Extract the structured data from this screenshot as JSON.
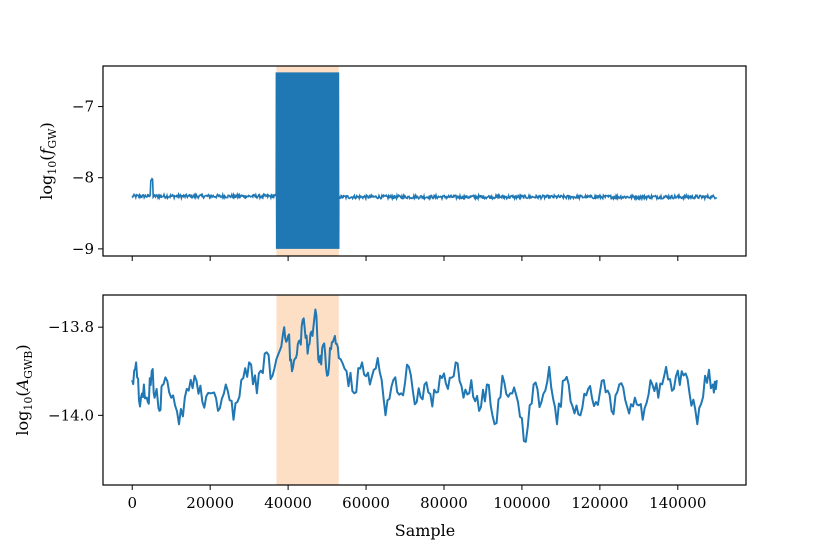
{
  "chart_data": [
    {
      "type": "line",
      "panel": "top",
      "ylabel": "log10(f_GW)",
      "ylabel_parts": {
        "main": "log",
        "sub": "10",
        "open": "(",
        "var": "f",
        "varsub": "GW",
        "close": ")"
      },
      "xlim": [
        -7500,
        157500
      ],
      "ylim": [
        -9.1,
        -6.43
      ],
      "yticks": [
        -9,
        -8,
        -7
      ],
      "ytick_labels": [
        "−9",
        "−8",
        "−7"
      ],
      "xticks": [
        0,
        20000,
        40000,
        60000,
        80000,
        100000,
        120000,
        140000
      ],
      "show_xtick_labels": false,
      "highlight_span": [
        37000,
        53000
      ],
      "line_color": "#1f77b4",
      "highlight_color": "#fddcbf",
      "series": [
        {
          "segments": [
            {
              "x_start": 0,
              "x_end": 37000,
              "mean": -8.26,
              "noise": 0.05
            },
            {
              "x_start": 37000,
              "x_end": 53000,
              "min": -9.0,
              "max": -6.52,
              "oscillating": true
            },
            {
              "x_start": 53000,
              "x_end": 150000,
              "mean": -8.27,
              "noise": 0.05
            }
          ],
          "spike": {
            "x": 5000,
            "y": -8.03
          }
        }
      ]
    },
    {
      "type": "line",
      "panel": "bottom",
      "ylabel": "log10(A_GWB)",
      "ylabel_parts": {
        "main": "log",
        "sub": "10",
        "open": "(",
        "var": "A",
        "varsub": "GWB",
        "close": ")"
      },
      "xlabel": "Sample",
      "xlim": [
        -7500,
        157500
      ],
      "ylim": [
        -14.158,
        -13.727
      ],
      "yticks": [
        -14.0,
        -13.8
      ],
      "ytick_labels": [
        "−14.0",
        "−13.8"
      ],
      "xticks": [
        0,
        20000,
        40000,
        60000,
        80000,
        100000,
        120000,
        140000
      ],
      "xtick_labels": [
        "0",
        "20000",
        "40000",
        "60000",
        "80000",
        "100000",
        "120000",
        "140000"
      ],
      "highlight_span": [
        37000,
        53000
      ],
      "line_color": "#1f77b4",
      "highlight_color": "#fddcbf",
      "series": [
        {
          "x": [
            0,
            1000,
            2000,
            3000,
            4000,
            5000,
            6000,
            7000,
            8000,
            10000,
            12000,
            14000,
            16000,
            18000,
            20000,
            22000,
            24000,
            26000,
            28000,
            30000,
            32000,
            34000,
            36000,
            38000,
            39000,
            40000,
            41000,
            42000,
            43000,
            44000,
            45000,
            46000,
            47000,
            48000,
            49000,
            50000,
            51000,
            52000,
            53000,
            55000,
            57000,
            59000,
            61000,
            63000,
            65000,
            67000,
            69000,
            71000,
            73000,
            75000,
            77000,
            79000,
            81000,
            83000,
            85000,
            87000,
            89000,
            91000,
            93000,
            95000,
            97000,
            99000,
            101000,
            103000,
            105000,
            107000,
            109000,
            111000,
            113000,
            115000,
            117000,
            119000,
            121000,
            123000,
            125000,
            127000,
            129000,
            131000,
            133000,
            135000,
            137000,
            139000,
            141000,
            143000,
            145000,
            147000,
            149000,
            150000
          ],
          "y": [
            -13.92,
            -13.88,
            -13.98,
            -13.93,
            -13.97,
            -13.9,
            -13.95,
            -13.99,
            -13.93,
            -13.96,
            -14.02,
            -13.94,
            -13.91,
            -13.97,
            -13.95,
            -13.99,
            -13.93,
            -14.01,
            -13.92,
            -13.88,
            -13.95,
            -13.86,
            -13.91,
            -13.85,
            -13.8,
            -13.82,
            -13.9,
            -13.87,
            -13.83,
            -13.78,
            -13.86,
            -13.81,
            -13.76,
            -13.88,
            -13.84,
            -13.91,
            -13.85,
            -13.82,
            -13.87,
            -13.9,
            -13.95,
            -13.88,
            -13.93,
            -13.87,
            -14.0,
            -13.92,
            -13.95,
            -13.89,
            -13.97,
            -13.93,
            -13.98,
            -13.91,
            -13.94,
            -13.88,
            -13.96,
            -13.92,
            -13.99,
            -13.93,
            -14.02,
            -13.91,
            -13.95,
            -13.97,
            -14.06,
            -13.93,
            -13.97,
            -13.89,
            -14.02,
            -13.92,
            -13.98,
            -14.0,
            -13.94,
            -13.97,
            -13.92,
            -13.99,
            -13.93,
            -13.98,
            -13.96,
            -14.01,
            -13.92,
            -13.96,
            -13.89,
            -13.94,
            -13.9,
            -13.95,
            -14.02,
            -13.91,
            -13.93,
            -13.92
          ]
        }
      ]
    }
  ]
}
